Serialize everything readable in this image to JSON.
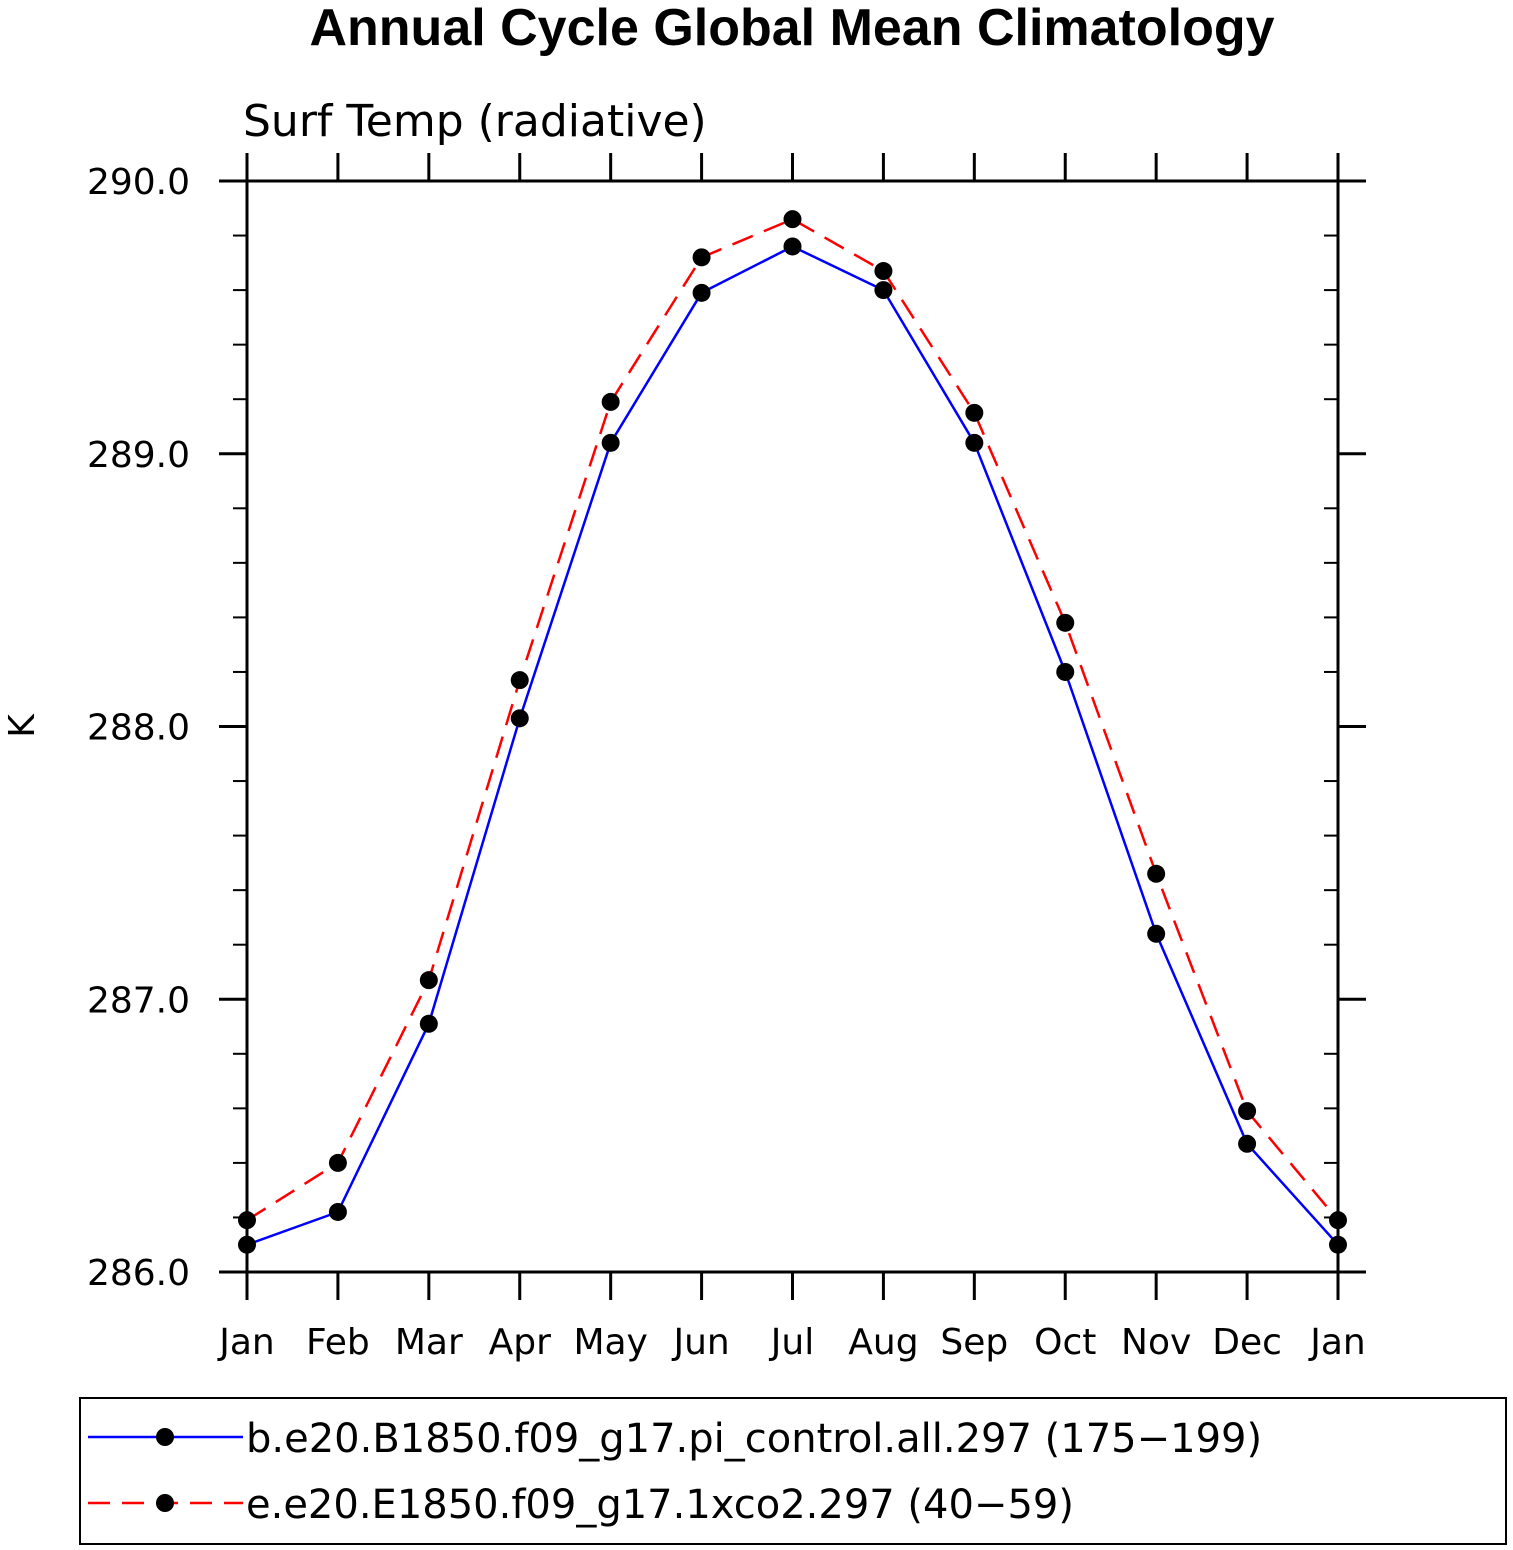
{
  "chart_data": {
    "type": "line",
    "title": "Annual Cycle Global Mean Climatology",
    "subtitle": "Surf Temp (radiative)",
    "xlabel": "",
    "ylabel": "K",
    "categories": [
      "Jan",
      "Feb",
      "Mar",
      "Apr",
      "May",
      "Jun",
      "Jul",
      "Aug",
      "Sep",
      "Oct",
      "Nov",
      "Dec",
      "Jan"
    ],
    "ylim": [
      286.0,
      290.0
    ],
    "y_ticks": [
      "286.0",
      "287.0",
      "288.0",
      "289.0",
      "290.0"
    ],
    "y_tick_values": [
      286.0,
      287.0,
      288.0,
      289.0,
      290.0
    ],
    "y_minor_step": 0.2,
    "grid": false,
    "legend_position": "bottom",
    "series": [
      {
        "name": "b.e20.B1850.f09_g17.pi_control.all.297 (175-199)",
        "display_name": "b.e20.B1850.f09_g17.pi_control.all.297 (175−199)",
        "color": "#0000ff",
        "line_style": "solid",
        "marker": "filled-circle",
        "values": [
          286.1,
          286.22,
          286.91,
          288.03,
          289.04,
          289.59,
          289.76,
          289.6,
          289.04,
          288.2,
          287.24,
          286.47,
          286.1
        ]
      },
      {
        "name": "e.e20.E1850.f09_g17.1xco2.297 (40-59)",
        "display_name": "e.e20.E1850.f09_g17.1xco2.297 (40−59)",
        "color": "#ff0000",
        "line_style": "dashed",
        "marker": "filled-circle",
        "values": [
          286.19,
          286.4,
          287.07,
          288.17,
          289.19,
          289.72,
          289.86,
          289.67,
          289.15,
          288.38,
          287.46,
          286.59,
          286.19
        ]
      }
    ]
  }
}
